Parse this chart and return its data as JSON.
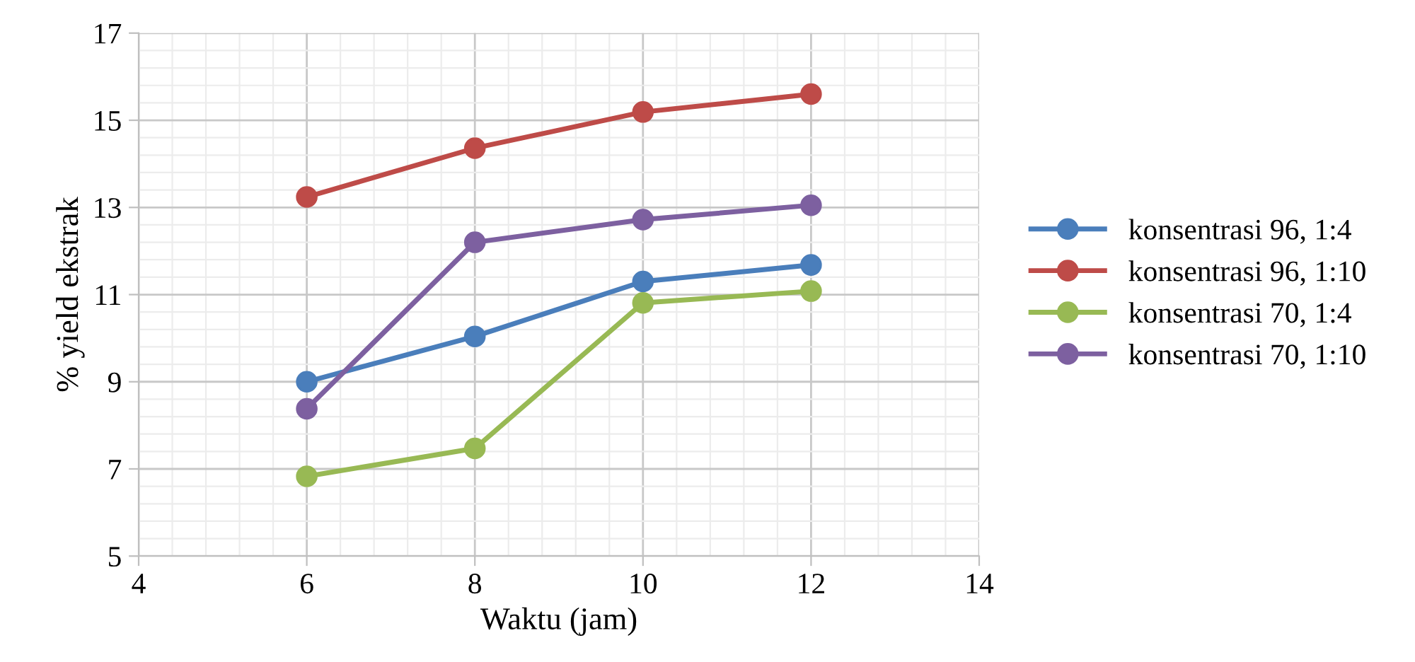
{
  "chart_data": {
    "type": "line",
    "xlabel": "Waktu (jam)",
    "ylabel": "% yield ekstrak",
    "x": [
      6,
      8,
      10,
      12
    ],
    "series": [
      {
        "name": "konsentrasi 96, 1:4",
        "color": "#4a7ebb",
        "values": [
          9.0,
          10.04,
          11.3,
          11.68
        ]
      },
      {
        "name": "konsentrasi 96, 1:10",
        "color": "#be4b48",
        "values": [
          13.24,
          14.36,
          15.19,
          15.6
        ]
      },
      {
        "name": "konsentrasi 70, 1:4",
        "color": "#98b954",
        "values": [
          6.83,
          7.47,
          10.81,
          11.08
        ]
      },
      {
        "name": "konsentrasi 70, 1:10",
        "color": "#7d60a0",
        "values": [
          8.38,
          12.2,
          12.72,
          13.05
        ]
      }
    ],
    "xlim": [
      4,
      14
    ],
    "xticks": [
      4,
      6,
      8,
      10,
      12,
      14
    ],
    "ylim": [
      5,
      17
    ],
    "yticks": [
      5,
      7,
      9,
      11,
      13,
      15,
      17
    ],
    "grid": true,
    "legend": "right",
    "marker": "circle",
    "line_style": "solid"
  }
}
